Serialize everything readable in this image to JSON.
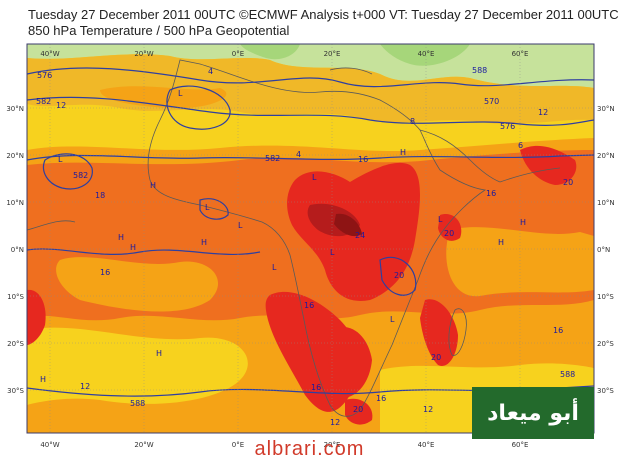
{
  "title": {
    "line1": "Tuesday 27 December 2011 00UTC ©ECMWF Analysis t+000 VT: Tuesday 27 December 2011 00UTC",
    "line2": "850 hPa Temperature / 500 hPa Geopotential"
  },
  "axes": {
    "lon_labels": [
      "40°W",
      "20°W",
      "0°E",
      "20°E",
      "40°E",
      "60°E"
    ],
    "lat_labels": [
      "30°N",
      "20°N",
      "10°N",
      "0°N",
      "10°S",
      "20°S",
      "30°S"
    ]
  },
  "contour_labels": [
    {
      "text": "576"
    },
    {
      "text": "582"
    },
    {
      "text": "12"
    },
    {
      "text": "582"
    },
    {
      "text": "4"
    },
    {
      "text": "8"
    },
    {
      "text": "588"
    },
    {
      "text": "570"
    },
    {
      "text": "12"
    },
    {
      "text": "576"
    },
    {
      "text": "6"
    },
    {
      "text": "4"
    },
    {
      "text": "16"
    },
    {
      "text": "18"
    },
    {
      "text": "582"
    },
    {
      "text": "16"
    },
    {
      "text": "16"
    },
    {
      "text": "20"
    },
    {
      "text": "24"
    },
    {
      "text": "20"
    },
    {
      "text": "16"
    },
    {
      "text": "20"
    },
    {
      "text": "16"
    },
    {
      "text": "20"
    },
    {
      "text": "12"
    },
    {
      "text": "588"
    },
    {
      "text": "16"
    },
    {
      "text": "20"
    },
    {
      "text": "12"
    },
    {
      "text": "16"
    },
    {
      "text": "12"
    },
    {
      "text": "588"
    }
  ],
  "pressure_centers": [
    "L",
    "L",
    "H",
    "L",
    "H",
    "L",
    "H",
    "L",
    "H",
    "L",
    "H",
    "H",
    "L",
    "L",
    "H",
    "H",
    "L",
    "H"
  ],
  "logo": {
    "text": "أبو ميعاد"
  },
  "watermark": {
    "text": "albrari.com"
  },
  "colors": {
    "cool": "#c6e29b",
    "yellow": "#f7d21e",
    "amber": "#f5a316",
    "orange": "#ef6f1f",
    "red": "#e6281f",
    "darkred": "#b51c1c",
    "contour": "#2f3fa0",
    "coast": "#5a5a5a"
  }
}
